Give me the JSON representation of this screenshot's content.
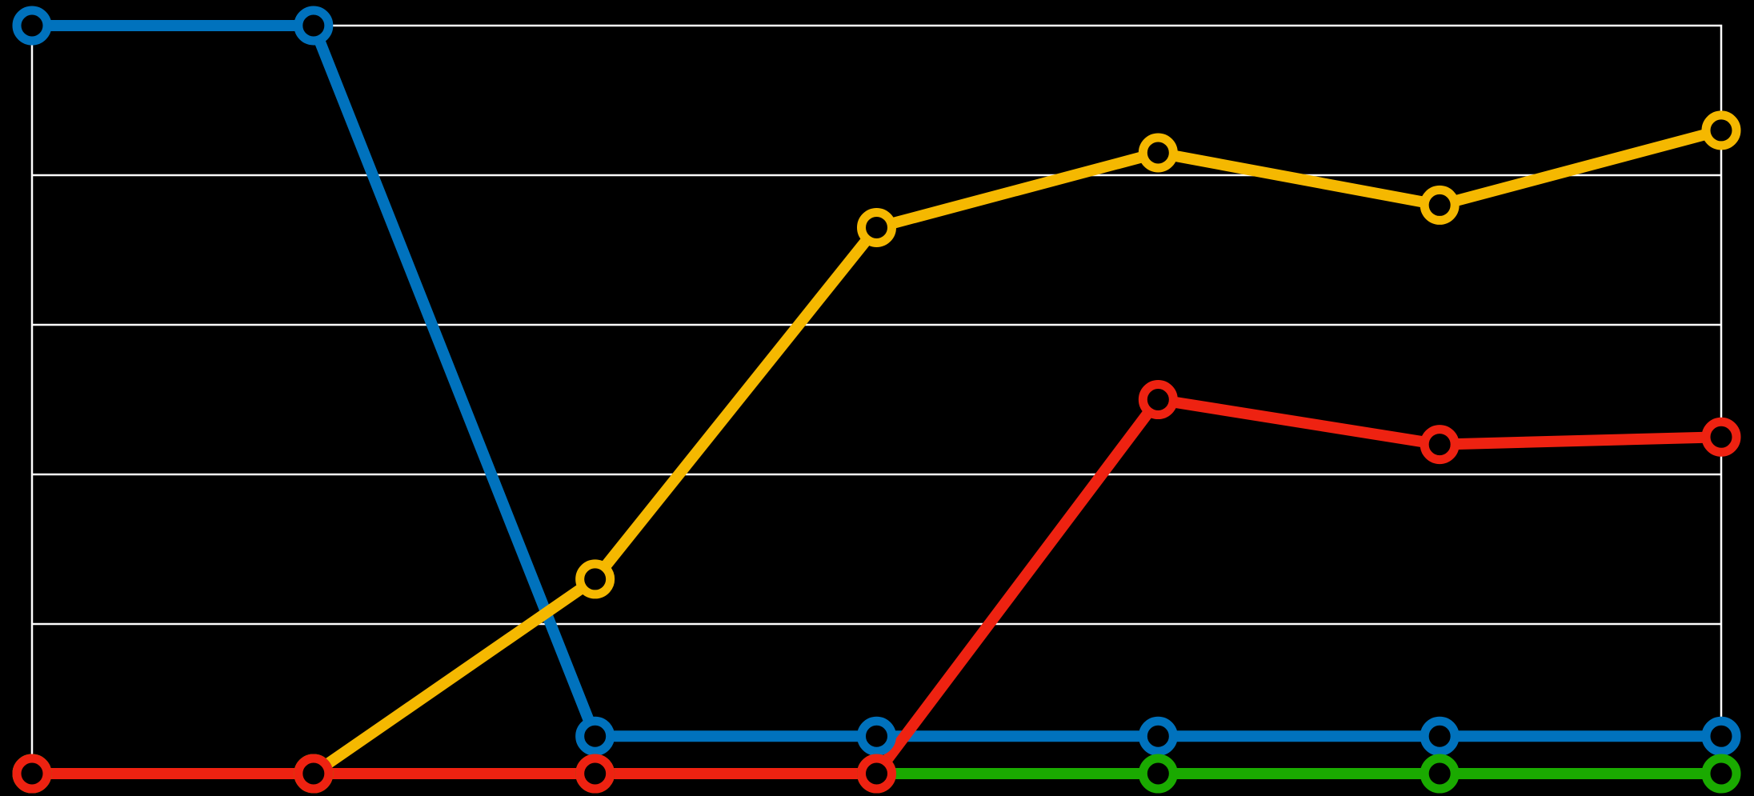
{
  "chart_data": {
    "type": "line",
    "title": "",
    "xlabel": "",
    "ylabel": "",
    "x": [
      1,
      2,
      3,
      4,
      5,
      6,
      7
    ],
    "ylim": [
      0,
      100
    ],
    "grid": true,
    "legend": "none",
    "series": [
      {
        "color": "#0072bd",
        "values": [
          100,
          100,
          5,
          5,
          5,
          5,
          5
        ]
      },
      {
        "color": "#f5b800",
        "values": [
          0,
          0,
          26,
          73,
          83,
          76,
          86
        ]
      },
      {
        "color": "#1aaa00",
        "values": [
          0,
          0,
          0,
          0,
          0,
          0,
          0
        ]
      },
      {
        "color": "#ee2211",
        "values": [
          0,
          0,
          0,
          0,
          50,
          44,
          45
        ]
      }
    ]
  }
}
